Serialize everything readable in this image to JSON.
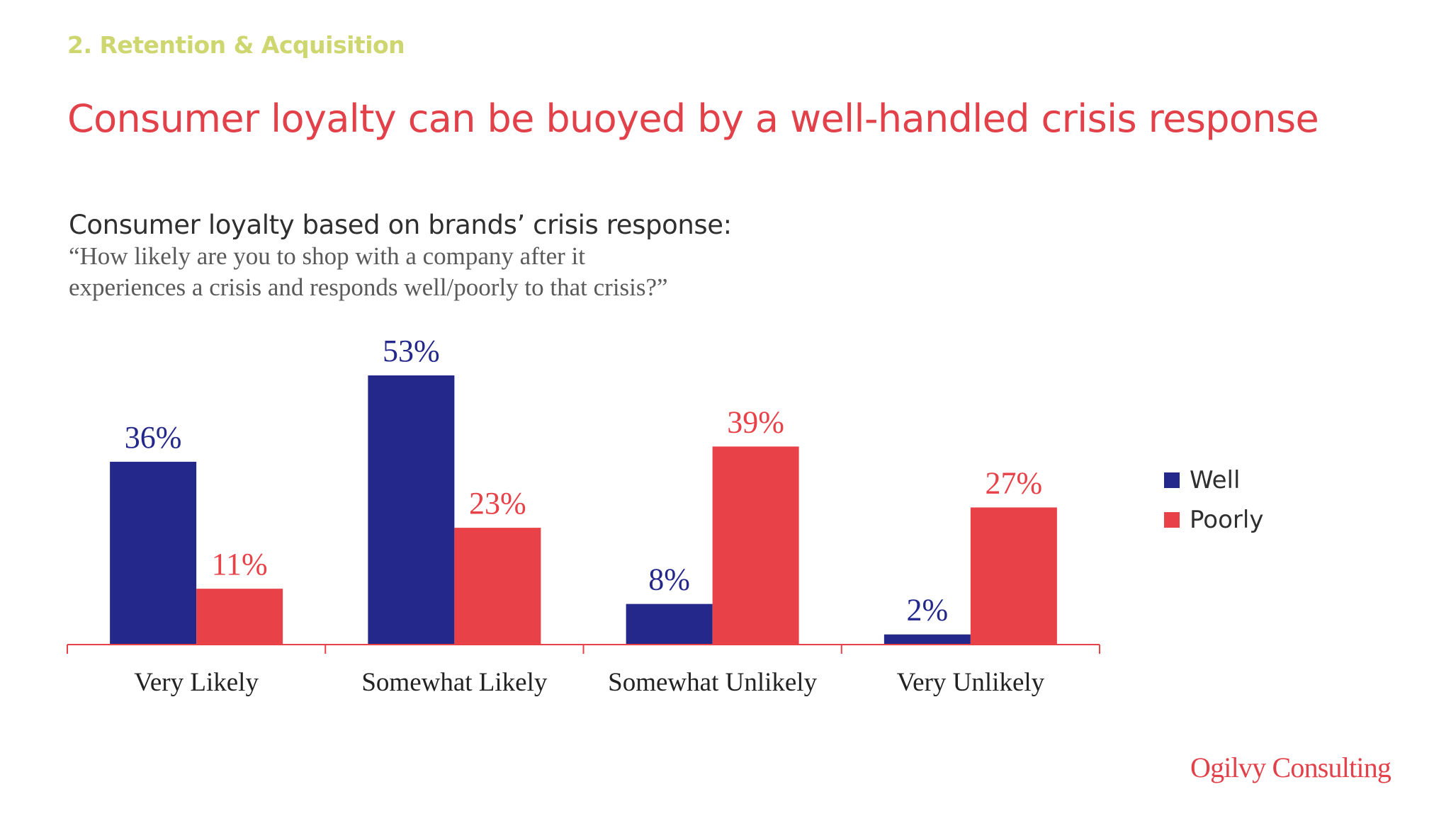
{
  "header": {
    "section_label": "2. Retention & Acquisition",
    "title": "Consumer loyalty can be buoyed by a well-handled crisis response"
  },
  "chart_heading": "Consumer loyalty based on brands’ crisis response:",
  "chart_question_line1": "“How likely are you to shop with a company after it",
  "chart_question_line2": "experiences a crisis and responds well/poorly to that crisis?”",
  "legend": {
    "items": [
      {
        "label": "Well",
        "color": "#24288a"
      },
      {
        "label": "Poorly",
        "color": "#e84148"
      }
    ]
  },
  "brand": "Ogilvy Consulting",
  "chart_data": {
    "type": "bar",
    "categories": [
      "Very Likely",
      "Somewhat Likely",
      "Somewhat Unlikely",
      "Very Unlikely"
    ],
    "series": [
      {
        "name": "Well",
        "values": [
          36,
          53,
          8,
          2
        ],
        "labels": [
          "36%",
          "53%",
          "8%",
          "2%"
        ],
        "color": "#24288a"
      },
      {
        "name": "Poorly",
        "values": [
          11,
          23,
          39,
          27
        ],
        "labels": [
          "11%",
          "23%",
          "39%",
          "27%"
        ],
        "color": "#e84148"
      }
    ],
    "unit": "%",
    "ylim": [
      0,
      53
    ],
    "axis_color": "#e84148",
    "grid": false,
    "legend_position": "right"
  }
}
